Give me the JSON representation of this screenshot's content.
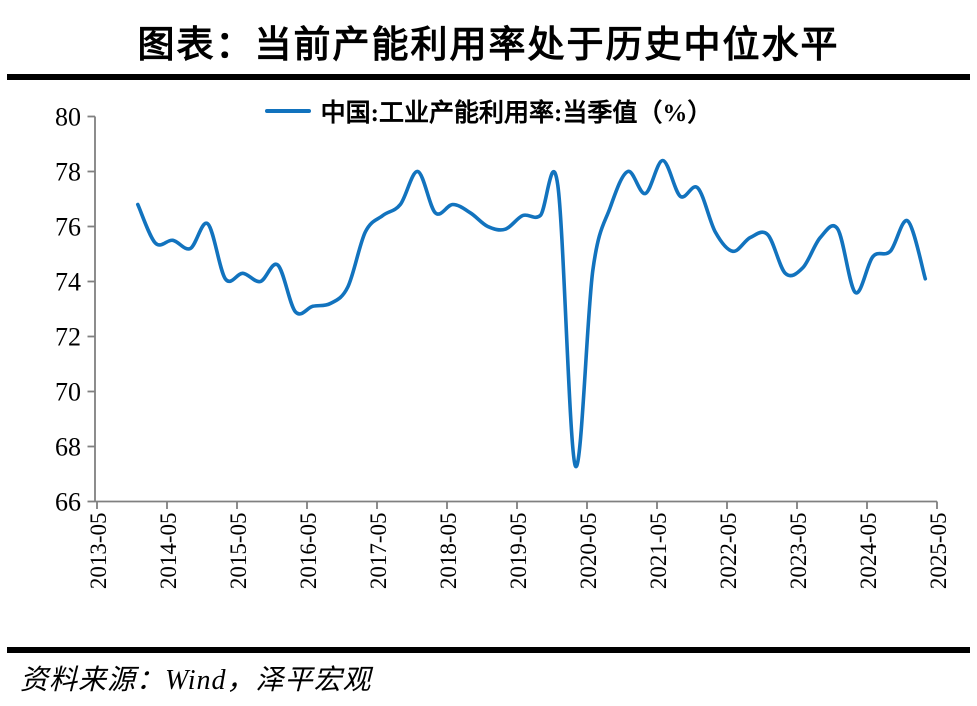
{
  "title": "图表：当前产能利用率处于历史中位水平",
  "legend": {
    "label": "中国:工业产能利用率:当季值（%）"
  },
  "source": "资料来源：Wind，泽平宏观",
  "colors": {
    "line": "#1273BE",
    "axis": "#808080",
    "rule": "#000000",
    "text": "#000000"
  },
  "chart_data": {
    "type": "line",
    "title": "图表：当前产能利用率处于历史中位水平",
    "xlabel": "",
    "ylabel": "",
    "ylim": [
      66,
      80
    ],
    "yticks": [
      66,
      68,
      70,
      72,
      74,
      76,
      78,
      80
    ],
    "xticks": [
      "2013-05",
      "2014-05",
      "2015-05",
      "2016-05",
      "2017-05",
      "2018-05",
      "2019-05",
      "2020-05",
      "2021-05",
      "2022-05",
      "2023-05",
      "2024-05",
      "2025-05"
    ],
    "grid": false,
    "smooth": true,
    "legend_position": "top-center",
    "series": [
      {
        "name": "中国:工业产能利用率:当季值（%）",
        "x": [
          "2013-12",
          "2014-03",
          "2014-06",
          "2014-09",
          "2014-12",
          "2015-03",
          "2015-06",
          "2015-09",
          "2015-12",
          "2016-03",
          "2016-06",
          "2016-09",
          "2016-12",
          "2017-03",
          "2017-06",
          "2017-09",
          "2017-12",
          "2018-03",
          "2018-06",
          "2018-09",
          "2018-12",
          "2019-03",
          "2019-06",
          "2019-09",
          "2019-12",
          "2020-03",
          "2020-06",
          "2020-09",
          "2020-12",
          "2021-03",
          "2021-06",
          "2021-09",
          "2021-12",
          "2022-03",
          "2022-06",
          "2022-09",
          "2022-12",
          "2023-03",
          "2023-06",
          "2023-09",
          "2023-12",
          "2024-03",
          "2024-06",
          "2024-09",
          "2024-12",
          "2025-03"
        ],
        "values": [
          76.8,
          75.4,
          75.5,
          75.2,
          76.1,
          74.1,
          74.3,
          74.0,
          74.6,
          72.9,
          73.1,
          73.2,
          73.8,
          75.8,
          76.4,
          76.8,
          78.0,
          76.5,
          76.8,
          76.5,
          76.0,
          75.9,
          76.4,
          76.4,
          77.5,
          67.3,
          74.4,
          76.7,
          78.0,
          77.2,
          78.4,
          77.1,
          77.4,
          75.8,
          75.1,
          75.6,
          75.7,
          74.3,
          74.5,
          75.6,
          75.9,
          73.6,
          74.9,
          75.1,
          76.2,
          74.1
        ]
      }
    ]
  }
}
